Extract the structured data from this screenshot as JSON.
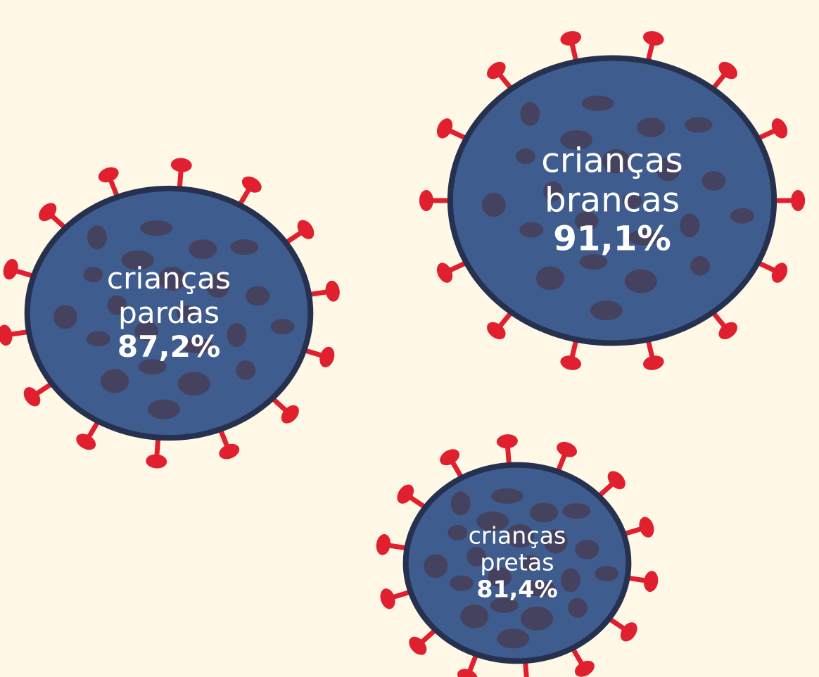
{
  "chart_data": {
    "type": "bubble",
    "categories": [
      "crianças brancas",
      "crianças pardas",
      "crianças pretas"
    ],
    "values": [
      91.1,
      87.2,
      81.4
    ],
    "value_labels": [
      "91,1%",
      "87,2%",
      "81,4%"
    ],
    "color": "#3f5c8f",
    "spike_color": "#e0202e"
  }
}
